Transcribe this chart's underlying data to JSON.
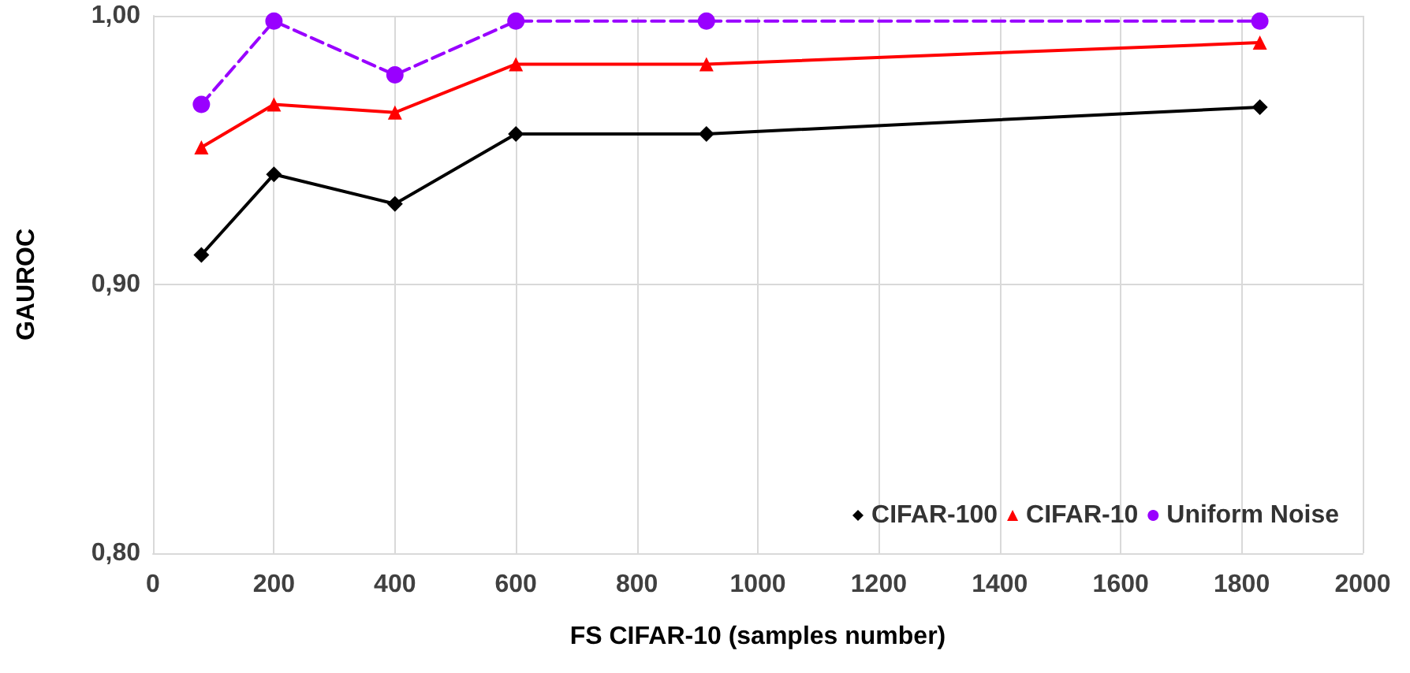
{
  "chart_data": {
    "type": "line",
    "xlabel": "FS CIFAR-10 (samples number)",
    "ylabel": "GAUROC",
    "x": [
      80,
      200,
      400,
      600,
      915,
      1830
    ],
    "series": [
      {
        "name": "CIFAR-100",
        "color": "#000000",
        "marker": "diamond",
        "line_style": "solid",
        "values": [
          0.911,
          0.941,
          0.93,
          0.956,
          0.956,
          0.966
        ]
      },
      {
        "name": "CIFAR-10",
        "color": "#ff0000",
        "marker": "triangle",
        "line_style": "solid",
        "values": [
          0.951,
          0.967,
          0.964,
          0.982,
          0.982,
          0.99
        ]
      },
      {
        "name": "Uniform Noise",
        "color": "#9900ff",
        "marker": "circle",
        "line_style": "dashed",
        "values": [
          0.967,
          0.998,
          0.978,
          0.998,
          0.998,
          0.998
        ]
      }
    ],
    "xlim": [
      0,
      2000
    ],
    "xticks": [
      0,
      200,
      400,
      600,
      800,
      1000,
      1200,
      1400,
      1600,
      1800,
      2000
    ],
    "ylim": [
      0.8,
      1.0
    ],
    "yticks": [
      {
        "value": 0.8,
        "label": "0,80"
      },
      {
        "value": 0.9,
        "label": "0,90"
      },
      {
        "value": 1.0,
        "label": "1,00"
      }
    ],
    "grid": true,
    "legend": "bottom right"
  }
}
